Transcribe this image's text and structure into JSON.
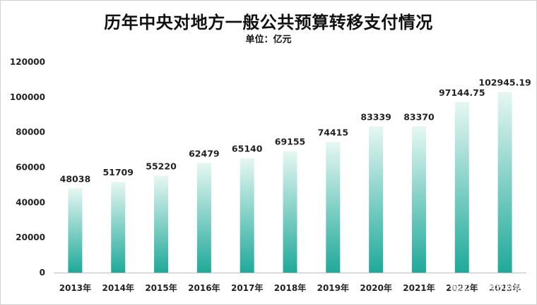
{
  "chart_data": {
    "type": "bar",
    "title": "历年中央对地方一般公共预算转移支付情况",
    "subtitle": "单位：亿元",
    "categories": [
      "2013年",
      "2014年",
      "2015年",
      "2016年",
      "2017年",
      "2018年",
      "2019年",
      "2020年",
      "2021年",
      "2022年",
      "2023年"
    ],
    "values": [
      48038,
      51709,
      55220,
      62479,
      65140,
      69155,
      74415,
      83339,
      83370,
      97144.75,
      102945.19
    ],
    "value_labels": [
      "48038",
      "51709",
      "55220",
      "62479",
      "65140",
      "69155",
      "74415",
      "83339",
      "83370",
      "97144.75",
      "102945.19"
    ],
    "y_ticks": [
      "0",
      "20000",
      "40000",
      "60000",
      "80000",
      "100000",
      "120000"
    ],
    "ylim": [
      0,
      120000
    ],
    "grid": false,
    "legend": "none",
    "colors": {
      "bar_top": "#e6f7f2",
      "bar_bottom": "#1fa99a"
    }
  },
  "watermark": "雪球：全世界网站"
}
